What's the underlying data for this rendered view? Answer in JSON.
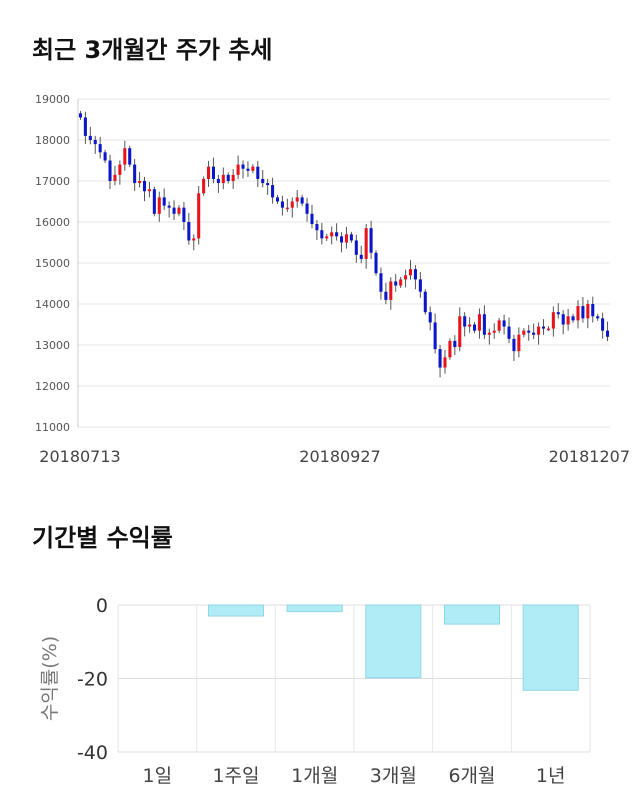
{
  "sections": {
    "price_title": "최근 3개월간 주가 추세",
    "returns_title": "기간별 수익률"
  },
  "colors": {
    "up": "#e8141c",
    "down": "#0a17c8",
    "bar_fill": "#b0ecf6",
    "bar_stroke": "#8fd6e6"
  },
  "chart_data": [
    {
      "type": "candlestick",
      "title": "최근 3개월간 주가 추세",
      "ylim": [
        11000,
        19000
      ],
      "yticks": [
        11000,
        12000,
        13000,
        14000,
        15000,
        16000,
        17000,
        18000,
        19000
      ],
      "x_tick_labels": [
        "20180713",
        "20180927",
        "20181207"
      ],
      "grid": true,
      "closes": [
        18550,
        18100,
        18000,
        17900,
        17700,
        17500,
        17000,
        17150,
        17400,
        17800,
        17400,
        16950,
        17000,
        16750,
        16800,
        16200,
        16600,
        16400,
        16350,
        16200,
        16350,
        16000,
        15550,
        15600,
        16700,
        17050,
        17350,
        17050,
        16950,
        17150,
        17000,
        17150,
        17400,
        17300,
        17250,
        17350,
        17050,
        16950,
        16900,
        16600,
        16500,
        16350,
        16350,
        16500,
        16600,
        16450,
        16200,
        15950,
        15800,
        15600,
        15650,
        15750,
        15650,
        15500,
        15700,
        15550,
        15200,
        15100,
        15850,
        15250,
        14750,
        14300,
        14100,
        14550,
        14450,
        14600,
        14700,
        14850,
        14600,
        14300,
        13800,
        13550,
        12900,
        12450,
        12700,
        13100,
        12950,
        13700,
        13450,
        13500,
        13350,
        13750,
        13250,
        13300,
        13350,
        13600,
        13450,
        13150,
        12850,
        13250,
        13350,
        13300,
        13250,
        13450,
        13400,
        13400,
        13800,
        13750,
        13500,
        13700,
        13600,
        13950,
        13650,
        14000,
        13700,
        13650,
        13350,
        13200
      ],
      "volatility_note": ""
    },
    {
      "type": "bar",
      "title": "기간별 수익률",
      "categories": [
        "1일",
        "1주일",
        "1개월",
        "3개월",
        "6개월",
        "1년"
      ],
      "values": [
        0,
        -3.0,
        -1.8,
        -19.8,
        -5.2,
        -23.2
      ],
      "ylabel": "수익률(%)",
      "ylim": [
        -40,
        0
      ],
      "yticks": [
        0,
        -20,
        -40
      ]
    }
  ]
}
